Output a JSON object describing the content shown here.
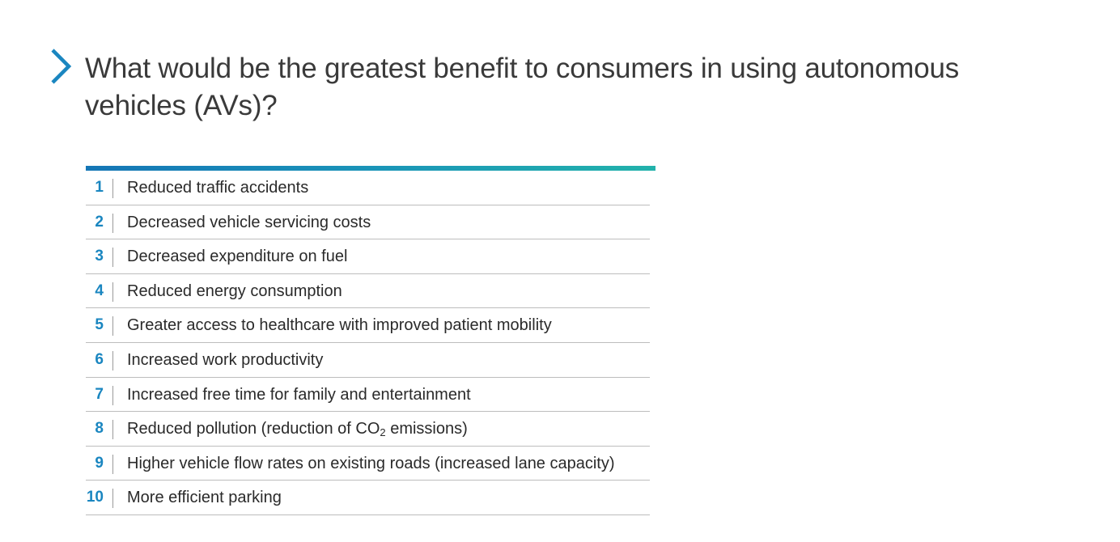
{
  "accent": {
    "chevron": "#1a86c0",
    "number": "#1a86c0",
    "rule_start": "#1576b6",
    "rule_end": "#22b2ab"
  },
  "question": "What would be the greatest benefit to consumers in using autonomous vehicles (AVs)?",
  "items": [
    {
      "rank": "1",
      "label": "Reduced traffic accidents"
    },
    {
      "rank": "2",
      "label": "Decreased vehicle servicing costs"
    },
    {
      "rank": "3",
      "label": "Decreased expenditure on fuel"
    },
    {
      "rank": "4",
      "label": "Reduced energy consumption"
    },
    {
      "rank": "5",
      "label": "Greater access to healthcare with improved patient mobility"
    },
    {
      "rank": "6",
      "label": "Increased work productivity"
    },
    {
      "rank": "7",
      "label": "Increased free time for family and entertainment"
    },
    {
      "rank": "8",
      "label": "Reduced pollution (reduction of CO",
      "sub": "2",
      "label_after": " emissions)"
    },
    {
      "rank": "9",
      "label": "Higher vehicle flow rates on existing roads (increased lane capacity)"
    },
    {
      "rank": "10",
      "label": "More efficient parking"
    }
  ]
}
